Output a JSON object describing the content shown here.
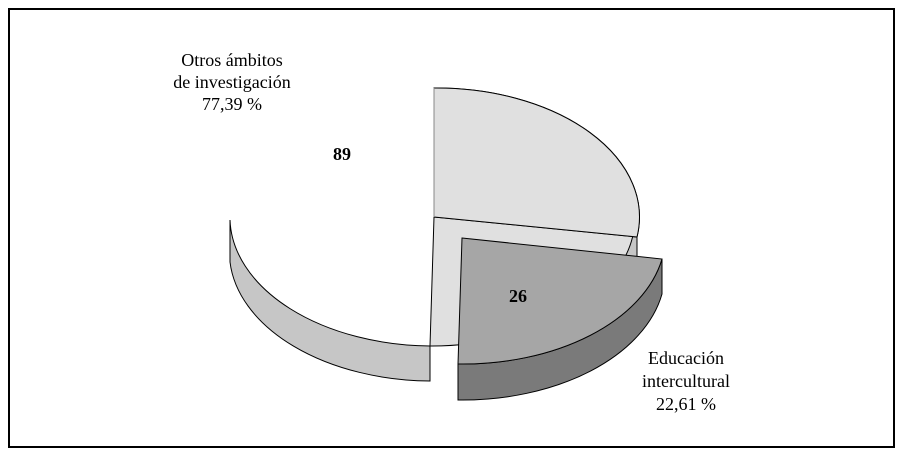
{
  "chart_data": {
    "type": "pie",
    "slices": [
      {
        "value": 89,
        "label_lines": [
          "Otros ámbitos",
          "de investigación",
          "77,39 %"
        ],
        "percent": 77.39,
        "color": "#e0e0e0",
        "exploded": false
      },
      {
        "value": 26,
        "label_lines": [
          "Educación",
          "intercultural",
          "22,61 %"
        ],
        "percent": 22.61,
        "color": "#a6a6a6",
        "exploded": true
      }
    ],
    "three_d": true
  }
}
